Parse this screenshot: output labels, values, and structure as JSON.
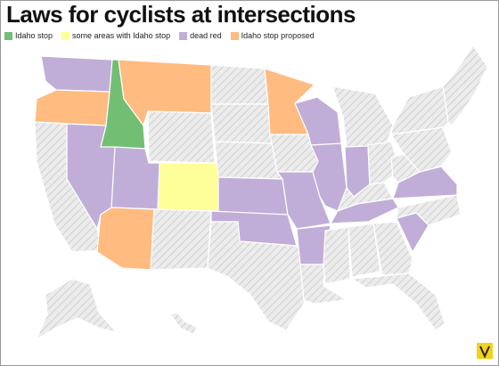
{
  "title": "Laws for cyclists at intersections",
  "legend": [
    {
      "label": "Idaho stop",
      "color": "#72bf74"
    },
    {
      "label": "some areas with Idaho stop",
      "color": "#ffff99"
    },
    {
      "label": "dead red",
      "color": "#c0aed8"
    },
    {
      "label": "Idaho stop proposed",
      "color": "#ffbb80"
    }
  ]
}
